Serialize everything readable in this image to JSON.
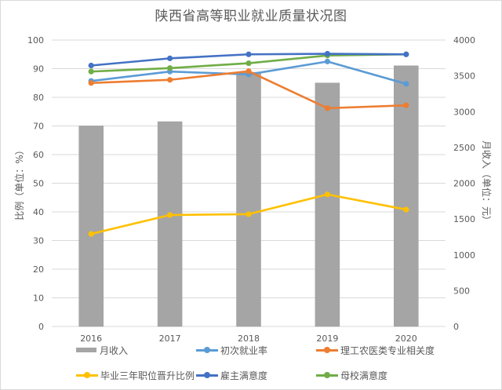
{
  "chart_data": {
    "type": "bar+line",
    "title": "陕西省高等职业就业质量状况图",
    "categories": [
      "2016",
      "2017",
      "2018",
      "2019",
      "2020"
    ],
    "xlabel": "",
    "ylabel": "比例（单位：%）",
    "ylabel_right": "月收入（单位：元）",
    "ylim": [
      0,
      100
    ],
    "ylim_right": [
      0,
      4000
    ],
    "yticks": [
      "0",
      "10",
      "20",
      "30",
      "40",
      "50",
      "60",
      "70",
      "80",
      "90",
      "100"
    ],
    "yticks_right": [
      "0",
      "500",
      "1000",
      "1500",
      "2000",
      "2500",
      "3000",
      "3500",
      "4000"
    ],
    "grid": true,
    "legend_position": "bottom",
    "series": [
      {
        "name": "月收入",
        "type": "bar",
        "axis": "right",
        "color": "#a5a5a5",
        "values": [
          2800,
          2860,
          3550,
          3400,
          3640
        ]
      },
      {
        "name": "初次就业率",
        "type": "line",
        "axis": "left",
        "color": "#5b9bd5",
        "values": [
          85.7,
          89.0,
          88.0,
          92.5,
          84.7
        ]
      },
      {
        "name": "理工农医类专业相关度",
        "type": "line",
        "axis": "left",
        "color": "#ed7d31",
        "values": [
          85.0,
          86.1,
          89.1,
          76.2,
          77.2
        ]
      },
      {
        "name": "毕业三年职位晋升比例",
        "type": "line",
        "axis": "left",
        "color": "#ffc000",
        "values": [
          32.3,
          38.9,
          39.2,
          46.1,
          40.8
        ]
      },
      {
        "name": "雇主满意度",
        "type": "line",
        "axis": "left",
        "color": "#4472c4",
        "values": [
          91.1,
          93.6,
          95.0,
          95.2,
          95.0
        ]
      },
      {
        "name": "母校满意度",
        "type": "line",
        "axis": "left",
        "color": "#70ad47",
        "values": [
          89.0,
          90.2,
          91.9,
          94.6,
          95.0
        ]
      }
    ]
  }
}
